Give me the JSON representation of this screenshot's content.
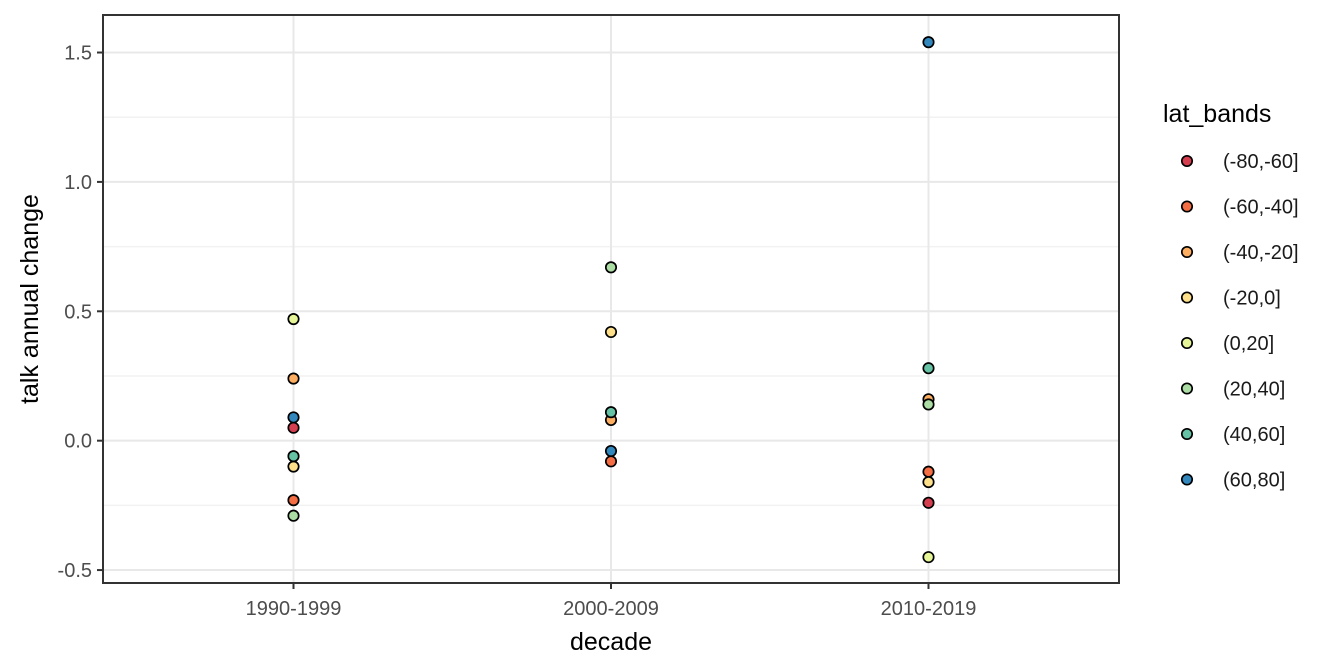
{
  "chart_data": {
    "type": "scatter",
    "title": "",
    "xlabel": "decade",
    "ylabel": "talk annual change",
    "legend_title": "lat_bands",
    "legend_position": "right",
    "grid": true,
    "categories": [
      "1990-1999",
      "2000-2009",
      "2010-2019"
    ],
    "series": [
      {
        "name": "(-80,-60]",
        "color": "#D53E4F",
        "values": [
          0.05,
          null,
          -0.24
        ]
      },
      {
        "name": "(-60,-40]",
        "color": "#F46D43",
        "values": [
          -0.23,
          -0.08,
          -0.12
        ]
      },
      {
        "name": "(-40,-20]",
        "color": "#FDAE61",
        "values": [
          0.24,
          0.08,
          0.16
        ]
      },
      {
        "name": "(-20,0]",
        "color": "#FEE08B",
        "values": [
          -0.1,
          0.42,
          -0.16
        ]
      },
      {
        "name": "(0,20]",
        "color": "#E6F598",
        "values": [
          0.47,
          null,
          -0.45
        ]
      },
      {
        "name": "(20,40]",
        "color": "#ABDDA4",
        "values": [
          -0.29,
          0.67,
          0.14
        ]
      },
      {
        "name": "(40,60]",
        "color": "#66C2A5",
        "values": [
          -0.06,
          0.11,
          0.28
        ]
      },
      {
        "name": "(60,80]",
        "color": "#3288BD",
        "values": [
          0.09,
          -0.04,
          1.54
        ]
      }
    ],
    "y_ticks": [
      {
        "label": "-0.5",
        "value": -0.5
      },
      {
        "label": "0.0",
        "value": 0.0
      },
      {
        "label": "0.5",
        "value": 0.5
      },
      {
        "label": "1.0",
        "value": 1.0
      },
      {
        "label": "1.5",
        "value": 1.5
      }
    ],
    "y_minor": [
      -0.25,
      0.25,
      0.75,
      1.25
    ],
    "ylim": [
      -0.55,
      1.645
    ],
    "point_style": {
      "shape": "circle-filled-outlined",
      "stroke": "#000000"
    }
  },
  "colors": {
    "background": "#FFFFFF",
    "panel_bg": "#FFFFFF",
    "panel_border": "#333333",
    "grid_major": "#E8E8E8",
    "grid_minor": "#F2F2F2",
    "axis_text": "#4D4D4D",
    "axis_title": "#000000",
    "tick_mark": "#333333",
    "point_stroke": "#000000"
  }
}
